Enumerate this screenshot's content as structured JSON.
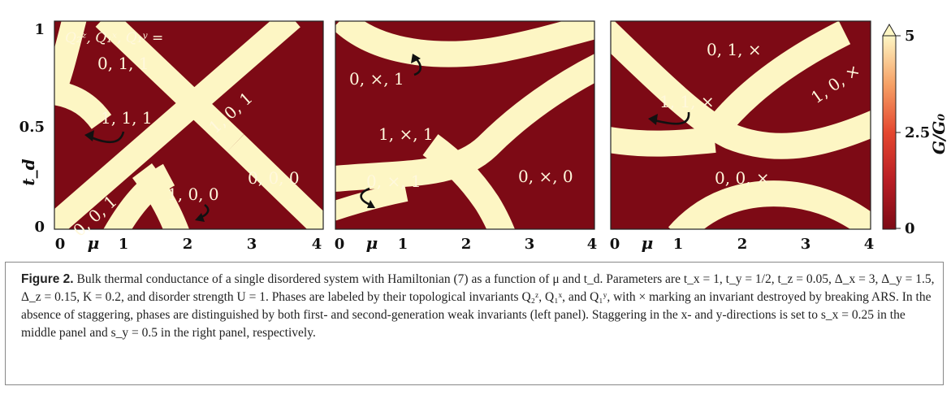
{
  "figure": {
    "colorbar": {
      "label": "G/G₀",
      "ticks": [
        "5",
        "2.5",
        "0"
      ],
      "colors": {
        "low": "#7d0a15",
        "mid": "#dc3a2a",
        "high": "#fdf6c4"
      }
    },
    "y_axis": {
      "label": "t_d",
      "ticks": [
        "1",
        "0.5",
        "0"
      ]
    },
    "x_axis": {
      "label": "μ",
      "ticks": [
        "0",
        "1",
        "2",
        "3",
        "4"
      ]
    },
    "legend_header": "Q₂ᶻ, Q₁ˣ, Q₁ʸ =",
    "panels": [
      {
        "name": "left",
        "labels": [
          "0, 1, 1",
          "1, 0, 1",
          "1, 1, 1",
          "0, 0, 0",
          "0, 0, 1",
          "1, 0, 0"
        ]
      },
      {
        "name": "middle",
        "labels": [
          "0, ×, 1",
          "1, ×, 1",
          "0, ×, 1",
          "0, ×, 0"
        ]
      },
      {
        "name": "right",
        "labels": [
          "0, 1, ×",
          "1, 0, ×",
          "1, 1, ×",
          "0, 0, ×"
        ]
      }
    ]
  },
  "caption": {
    "figure_label": "Figure 2.",
    "text": "Bulk thermal conductance of a single disordered system with Hamiltonian (7) as a function of μ and t_d. Parameters are t_x = 1, t_y = 1/2, t_z = 0.05, Δ_x = 3, Δ_y = 1.5, Δ_z = 0.15, K = 0.2, and disorder strength U = 1. Phases are labeled by their topological invariants Q₂ᶻ, Q₁ˣ, and Q₁ʸ, with × marking an invariant destroyed by breaking ARS. In the absence of staggering, phases are distinguished by both first- and second-generation weak invariants (left panel). Staggering in the x- and y-directions is set to s_x = 0.25 in the middle panel and s_y = 0.5 in the right panel, respectively."
  }
}
